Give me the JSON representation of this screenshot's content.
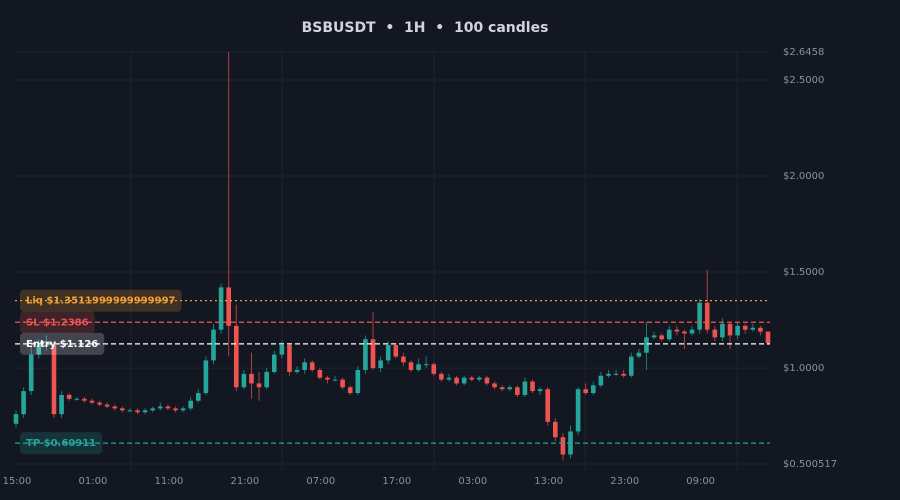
{
  "chart_data": {
    "type": "candlestick",
    "title": "BSBUSDT  •  1H  •  100 candles",
    "categories": [
      "15:00",
      null,
      null,
      null,
      null,
      null,
      null,
      null,
      null,
      null,
      "01:00",
      null,
      null,
      null,
      null,
      null,
      null,
      null,
      null,
      null,
      "11:00",
      null,
      null,
      null,
      null,
      null,
      null,
      null,
      null,
      null,
      "21:00",
      null,
      null,
      null,
      null,
      null,
      null,
      null,
      null,
      null,
      "07:00",
      null,
      null,
      null,
      null,
      null,
      null,
      null,
      null,
      null,
      "17:00",
      null,
      null,
      null,
      null,
      null,
      null,
      null,
      null,
      null,
      "03:00",
      null,
      null,
      null,
      null,
      null,
      null,
      null,
      null,
      null,
      "13:00",
      null,
      null,
      null,
      null,
      null,
      null,
      null,
      null,
      null,
      "23:00",
      null,
      null,
      null,
      null,
      null,
      null,
      null,
      null,
      null,
      "09:00",
      null,
      null,
      null,
      null,
      null,
      null,
      null,
      null,
      null
    ],
    "open": [
      0.71,
      0.76,
      0.88,
      1.07,
      1.12,
      1.12,
      0.76,
      0.86,
      0.84,
      0.84,
      0.83,
      0.82,
      0.81,
      0.8,
      0.79,
      0.78,
      0.78,
      0.77,
      0.78,
      0.79,
      0.8,
      0.79,
      0.78,
      0.79,
      0.83,
      0.87,
      1.04,
      1.2,
      1.42,
      1.22,
      0.9,
      0.97,
      0.92,
      0.9,
      0.98,
      1.07,
      1.12,
      0.98,
      0.99,
      1.03,
      0.99,
      0.95,
      0.94,
      0.94,
      0.9,
      0.87,
      0.99,
      1.15,
      1.0,
      1.04,
      1.12,
      1.06,
      1.03,
      0.99,
      1.02,
      1.02,
      0.97,
      0.94,
      0.95,
      0.92,
      0.95,
      0.94,
      0.95,
      0.92,
      0.9,
      0.89,
      0.9,
      0.86,
      0.93,
      0.88,
      0.89,
      0.72,
      0.64,
      0.55,
      0.67,
      0.89,
      0.87,
      0.91,
      0.96,
      0.97,
      0.97,
      0.96,
      1.06,
      1.08,
      1.16,
      1.17,
      1.15,
      1.2,
      1.19,
      1.18,
      1.2,
      1.34,
      1.2,
      1.16,
      1.23,
      1.17,
      1.22,
      1.2,
      1.21,
      1.19
    ],
    "high": [
      0.78,
      0.9,
      1.12,
      1.15,
      1.17,
      1.14,
      0.88,
      0.87,
      0.85,
      0.85,
      0.84,
      0.83,
      0.82,
      0.81,
      0.8,
      0.79,
      0.79,
      0.79,
      0.8,
      0.82,
      0.81,
      0.8,
      0.8,
      0.85,
      0.89,
      1.06,
      1.23,
      1.44,
      2.6458,
      1.33,
      0.99,
      1.08,
      0.98,
      1.0,
      1.09,
      1.14,
      1.13,
      1.01,
      1.05,
      1.04,
      1.0,
      0.96,
      0.96,
      0.95,
      0.91,
      1.01,
      1.17,
      1.29,
      1.06,
      1.14,
      1.13,
      1.08,
      1.04,
      1.05,
      1.06,
      1.03,
      0.98,
      0.97,
      0.96,
      0.96,
      0.96,
      0.96,
      0.96,
      0.93,
      0.91,
      0.91,
      0.91,
      0.95,
      0.94,
      0.9,
      0.9,
      0.74,
      0.66,
      0.7,
      0.9,
      0.92,
      0.93,
      0.98,
      0.99,
      0.99,
      0.99,
      1.08,
      1.1,
      1.24,
      1.19,
      1.18,
      1.22,
      1.22,
      1.2,
      1.22,
      1.36,
      1.51,
      1.22,
      1.26,
      1.24,
      1.24,
      1.23,
      1.23,
      1.22,
      1.19
    ],
    "low": [
      0.69,
      0.74,
      0.86,
      1.05,
      1.09,
      0.74,
      0.74,
      0.83,
      0.83,
      0.82,
      0.81,
      0.8,
      0.79,
      0.78,
      0.77,
      0.77,
      0.76,
      0.76,
      0.77,
      0.78,
      0.78,
      0.77,
      0.77,
      0.78,
      0.82,
      0.86,
      1.02,
      1.18,
      1.06,
      0.88,
      0.89,
      0.84,
      0.83,
      0.89,
      0.97,
      1.05,
      0.96,
      0.97,
      0.97,
      0.98,
      0.94,
      0.92,
      0.93,
      0.89,
      0.86,
      0.86,
      0.97,
      0.99,
      0.98,
      1.02,
      1.05,
      1.01,
      0.98,
      0.98,
      1.0,
      0.96,
      0.93,
      0.93,
      0.91,
      0.91,
      0.93,
      0.93,
      0.91,
      0.89,
      0.88,
      0.88,
      0.85,
      0.85,
      0.87,
      0.86,
      0.7,
      0.62,
      0.52,
      0.53,
      0.65,
      0.86,
      0.86,
      0.9,
      0.95,
      0.96,
      0.95,
      0.95,
      1.05,
      0.99,
      1.15,
      1.14,
      1.14,
      1.17,
      1.1,
      1.17,
      1.18,
      1.18,
      1.14,
      1.14,
      1.1,
      1.15,
      1.18,
      1.19,
      1.17,
      1.12
    ],
    "close": [
      0.76,
      0.88,
      1.07,
      1.12,
      1.12,
      0.76,
      0.86,
      0.84,
      0.84,
      0.83,
      0.82,
      0.81,
      0.8,
      0.79,
      0.78,
      0.78,
      0.77,
      0.78,
      0.79,
      0.8,
      0.79,
      0.78,
      0.79,
      0.83,
      0.87,
      1.04,
      1.2,
      1.42,
      1.22,
      0.9,
      0.97,
      0.92,
      0.9,
      0.98,
      1.07,
      1.12,
      0.98,
      0.99,
      1.03,
      0.99,
      0.95,
      0.94,
      0.94,
      0.9,
      0.87,
      0.99,
      1.15,
      1.0,
      1.04,
      1.12,
      1.06,
      1.03,
      0.99,
      1.02,
      1.02,
      0.97,
      0.94,
      0.95,
      0.92,
      0.95,
      0.94,
      0.95,
      0.92,
      0.9,
      0.89,
      0.9,
      0.86,
      0.93,
      0.88,
      0.89,
      0.72,
      0.64,
      0.55,
      0.67,
      0.89,
      0.87,
      0.91,
      0.96,
      0.97,
      0.97,
      0.96,
      1.06,
      1.08,
      1.16,
      1.17,
      1.15,
      1.2,
      1.19,
      1.18,
      1.2,
      1.34,
      1.2,
      1.16,
      1.23,
      1.17,
      1.22,
      1.2,
      1.21,
      1.19,
      1.13
    ],
    "up_color": "#26a69a",
    "down_color": "#ef5350",
    "ylim": [
      0.500517,
      2.6458
    ],
    "yticks": [
      {
        "value": 0.500517,
        "label": "$0.500517"
      },
      {
        "value": 1.0,
        "label": "$1.0000"
      },
      {
        "value": 1.5,
        "label": "$1.5000"
      },
      {
        "value": 2.0,
        "label": "$2.0000"
      },
      {
        "value": 2.5,
        "label": "$2.5000"
      },
      {
        "value": 2.6458,
        "label": "$2.6458"
      }
    ],
    "grid": true,
    "levels": [
      {
        "label": "Liq $1.3511999999999997",
        "value": 1.3511999999999997,
        "color": "#f0a030",
        "style": "dotted"
      },
      {
        "label": "SL $1.2386",
        "value": 1.2386,
        "color": "#ef5350",
        "style": "dashed"
      },
      {
        "label": "Entry $1.126",
        "value": 1.126,
        "color": "#ffffff",
        "style": "dashed"
      },
      {
        "label": "TP $0.60911",
        "value": 0.60911,
        "color": "#26a69a",
        "style": "dashed"
      }
    ]
  }
}
